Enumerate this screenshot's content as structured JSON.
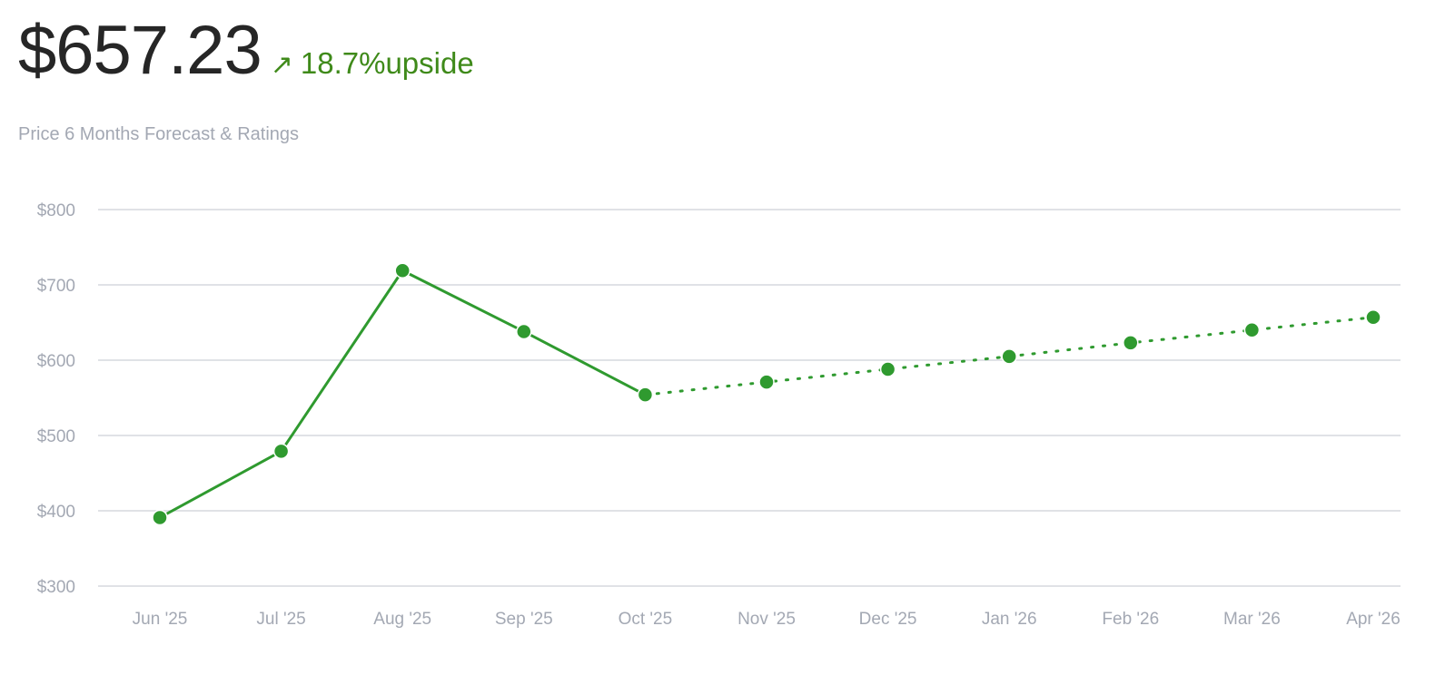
{
  "header": {
    "price": "$657.23",
    "change_arrow": "↗",
    "change_value": "18.7%",
    "change_label": "upside",
    "subtitle": "Price 6 Months Forecast & Ratings"
  },
  "colors": {
    "series": "#2f9a2f",
    "grid": "#d5d8de",
    "tick_text": "#a3a8b3",
    "upside": "#3f8a1a"
  },
  "chart_data": {
    "type": "line",
    "title": "",
    "xlabel": "",
    "ylabel": "",
    "categories": [
      "Jun '25",
      "Jul '25",
      "Aug '25",
      "Sep '25",
      "Oct '25",
      "Nov '25",
      "Dec '25",
      "Jan '26",
      "Feb '26",
      "Mar '26",
      "Apr '26"
    ],
    "ylim": [
      300,
      800
    ],
    "yticks": [
      300,
      400,
      500,
      600,
      700,
      800
    ],
    "ytick_labels": [
      "$300",
      "$400",
      "$500",
      "$600",
      "$700",
      "$800"
    ],
    "grid": true,
    "series": [
      {
        "style": "solid",
        "x": [
          "Jun '25",
          "Jul '25",
          "Aug '25",
          "Sep '25",
          "Oct '25"
        ],
        "values": [
          391,
          479,
          719,
          638,
          554
        ]
      },
      {
        "style": "dotted",
        "x": [
          "Oct '25",
          "Nov '25",
          "Dec '25",
          "Jan '26",
          "Feb '26",
          "Mar '26",
          "Apr '26"
        ],
        "values": [
          554,
          571,
          588,
          605,
          623,
          640,
          657
        ]
      }
    ]
  }
}
